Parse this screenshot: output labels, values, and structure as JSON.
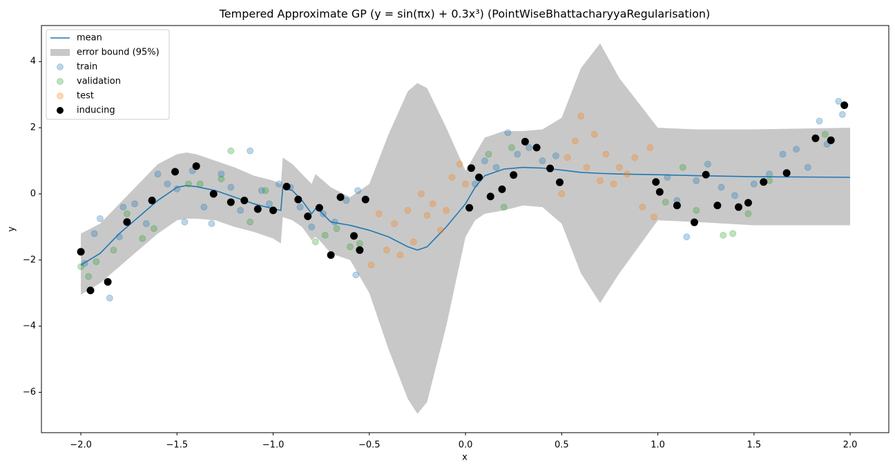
{
  "chart_data": {
    "type": "composite",
    "title": "Tempered Approximate GP (y = sin(πx) + 0.3x³) (PointWiseBhattacharyyaRegularisation)",
    "x_label": "x",
    "y_label": "y",
    "xlim": [
      -2.205,
      2.201
    ],
    "ylim": [
      -7.22,
      5.09
    ],
    "xticks": [
      {
        "value": -2.0,
        "label": "−2.0"
      },
      {
        "value": -1.5,
        "label": "−1.5"
      },
      {
        "value": -1.0,
        "label": "−1.0"
      },
      {
        "value": -0.5,
        "label": "−0.5"
      },
      {
        "value": 0,
        "label": "0.0"
      },
      {
        "value": 0.5,
        "label": "0.5"
      },
      {
        "value": 1.0,
        "label": "1.0"
      },
      {
        "value": 1.5,
        "label": "1.5"
      },
      {
        "value": 2.0,
        "label": "2.0"
      }
    ],
    "yticks": [
      {
        "value": -6,
        "label": "−6"
      },
      {
        "value": -4,
        "label": "−4"
      },
      {
        "value": -2,
        "label": "−2"
      },
      0,
      2,
      4
    ],
    "grid": false,
    "legend": "upper left",
    "series": [
      {
        "name": "mean",
        "type": "line",
        "color": "#1f77b4",
        "x": [
          -2.0,
          -1.9,
          -1.8,
          -1.7,
          -1.6,
          -1.5,
          -1.45,
          -1.4,
          -1.3,
          -1.2,
          -1.1,
          -1.0,
          -0.96,
          -0.95,
          -0.9,
          -0.85,
          -0.8,
          -0.78,
          -0.76,
          -0.7,
          -0.6,
          -0.5,
          -0.4,
          -0.3,
          -0.25,
          -0.2,
          -0.1,
          0.0,
          0.05,
          0.1,
          0.2,
          0.3,
          0.4,
          0.5,
          0.6,
          0.7,
          0.8,
          1.0,
          1.2,
          1.5,
          2.0
        ],
        "values": [
          -2.15,
          -1.8,
          -1.2,
          -0.7,
          -0.2,
          0.2,
          0.25,
          0.22,
          0.1,
          -0.1,
          -0.3,
          -0.45,
          -0.5,
          0.2,
          0.1,
          -0.2,
          -0.6,
          -0.45,
          -0.5,
          -0.85,
          -0.95,
          -1.1,
          -1.3,
          -1.6,
          -1.7,
          -1.6,
          -1.0,
          -0.3,
          0.2,
          0.55,
          0.75,
          0.8,
          0.78,
          0.72,
          0.65,
          0.62,
          0.6,
          0.58,
          0.55,
          0.52,
          0.5
        ]
      },
      {
        "name": "error bound (95%)",
        "type": "band",
        "color": "#c8c8c8",
        "x": [
          -2.0,
          -1.9,
          -1.8,
          -1.7,
          -1.6,
          -1.5,
          -1.45,
          -1.4,
          -1.3,
          -1.2,
          -1.1,
          -1.0,
          -0.96,
          -0.95,
          -0.9,
          -0.85,
          -0.8,
          -0.78,
          -0.76,
          -0.7,
          -0.6,
          -0.5,
          -0.4,
          -0.3,
          -0.25,
          -0.2,
          -0.1,
          0.0,
          0.05,
          0.1,
          0.2,
          0.3,
          0.4,
          0.5,
          0.6,
          0.7,
          0.8,
          1.0,
          1.2,
          1.5,
          2.0
        ],
        "upper": [
          -1.2,
          -0.9,
          -0.3,
          0.3,
          0.9,
          1.2,
          1.25,
          1.2,
          1.0,
          0.8,
          0.55,
          0.4,
          0.3,
          1.1,
          0.9,
          0.6,
          0.3,
          0.6,
          0.5,
          0.2,
          -0.1,
          0.3,
          1.8,
          3.1,
          3.35,
          3.2,
          2.0,
          0.7,
          1.2,
          1.7,
          1.9,
          1.9,
          1.95,
          2.3,
          3.8,
          4.55,
          3.5,
          2.0,
          1.95,
          1.95,
          2.0
        ],
        "lower": [
          -3.05,
          -2.7,
          -2.2,
          -1.7,
          -1.2,
          -0.8,
          -0.75,
          -0.75,
          -0.8,
          -1.0,
          -1.15,
          -1.35,
          -1.5,
          -0.7,
          -0.8,
          -1.0,
          -1.4,
          -1.3,
          -1.4,
          -1.8,
          -2.0,
          -3.0,
          -4.7,
          -6.2,
          -6.65,
          -6.3,
          -4.0,
          -1.3,
          -0.8,
          -0.6,
          -0.5,
          -0.35,
          -0.4,
          -0.9,
          -2.4,
          -3.3,
          -2.4,
          -0.8,
          -0.85,
          -0.95,
          -0.95
        ]
      },
      {
        "name": "train",
        "type": "scatter",
        "color": "#1f77b4",
        "alpha": 0.3,
        "x": [
          -1.98,
          -1.93,
          -1.9,
          -1.85,
          -1.8,
          -1.78,
          -1.72,
          -1.66,
          -1.6,
          -1.55,
          -1.5,
          -1.46,
          -1.42,
          -1.36,
          -1.32,
          -1.27,
          -1.22,
          -1.17,
          -1.12,
          -1.06,
          -1.02,
          -0.97,
          -0.91,
          -0.86,
          -0.8,
          -0.74,
          -0.68,
          -0.62,
          -0.57,
          -0.56,
          0.05,
          0.1,
          0.16,
          0.22,
          0.27,
          0.33,
          0.4,
          0.47,
          1.05,
          1.1,
          1.15,
          1.2,
          1.26,
          1.33,
          1.4,
          1.5,
          1.58,
          1.65,
          1.72,
          1.78,
          1.84,
          1.88,
          1.94,
          1.96
        ],
        "values": [
          -2.1,
          -1.2,
          -0.75,
          -3.15,
          -1.3,
          -0.4,
          -0.3,
          -0.9,
          0.6,
          0.3,
          0.15,
          -0.85,
          0.7,
          -0.4,
          -0.9,
          0.6,
          0.2,
          -0.5,
          1.3,
          0.1,
          -0.3,
          0.3,
          0.2,
          -0.4,
          -1.0,
          -0.6,
          -0.85,
          -0.2,
          -2.45,
          0.1,
          0.3,
          1.0,
          0.8,
          1.85,
          1.2,
          1.4,
          1.0,
          1.15,
          0.5,
          -0.2,
          -1.3,
          0.4,
          0.9,
          0.2,
          -0.05,
          0.3,
          0.6,
          1.2,
          1.35,
          0.8,
          2.2,
          1.5,
          2.8,
          2.4
        ]
      },
      {
        "name": "validation",
        "type": "scatter",
        "color": "#2ca02c",
        "alpha": 0.3,
        "x": [
          -2.0,
          -1.96,
          -1.92,
          -1.83,
          -1.76,
          -1.68,
          -1.62,
          -1.44,
          -1.38,
          -1.27,
          -1.22,
          -1.12,
          -1.04,
          -0.78,
          -0.73,
          -0.67,
          -0.6,
          -0.55,
          0.12,
          0.2,
          0.24,
          1.04,
          1.13,
          1.2,
          1.34,
          1.39,
          1.47,
          1.58,
          1.87
        ],
        "values": [
          -2.2,
          -2.5,
          -2.05,
          -1.7,
          -0.6,
          -1.35,
          -1.05,
          0.3,
          0.3,
          0.45,
          1.3,
          -0.85,
          0.1,
          -1.45,
          -1.25,
          -1.05,
          -1.6,
          -1.5,
          1.2,
          -0.4,
          1.4,
          -0.25,
          0.8,
          -0.5,
          -1.25,
          -1.2,
          -0.6,
          0.4,
          1.8
        ]
      },
      {
        "name": "test",
        "type": "scatter",
        "color": "#ff7f0e",
        "alpha": 0.3,
        "x": [
          -0.49,
          -0.45,
          -0.41,
          -0.37,
          -0.34,
          -0.3,
          -0.27,
          -0.23,
          -0.2,
          -0.17,
          -0.13,
          -0.1,
          -0.07,
          -0.03,
          0.0,
          0.5,
          0.53,
          0.57,
          0.6,
          0.63,
          0.67,
          0.7,
          0.73,
          0.77,
          0.8,
          0.84,
          0.88,
          0.92,
          0.96,
          0.98
        ],
        "values": [
          -2.15,
          -0.6,
          -1.7,
          -0.9,
          -1.85,
          -0.5,
          -1.45,
          0.0,
          -0.65,
          -0.3,
          -1.1,
          -0.5,
          0.5,
          0.9,
          0.3,
          0.0,
          1.1,
          1.6,
          2.35,
          0.8,
          1.8,
          0.4,
          1.2,
          0.3,
          0.8,
          0.6,
          1.1,
          -0.4,
          1.4,
          -0.7
        ]
      },
      {
        "name": "inducing",
        "type": "scatter",
        "color": "#000000",
        "alpha": 1,
        "x": [
          -2.0,
          -1.95,
          -1.86,
          -1.76,
          -1.63,
          -1.51,
          -1.4,
          -1.31,
          -1.22,
          -1.15,
          -1.08,
          -1.0,
          -0.93,
          -0.87,
          -0.82,
          -0.76,
          -0.7,
          -0.65,
          -0.58,
          -0.55,
          -0.52,
          0.02,
          0.03,
          0.07,
          0.13,
          0.19,
          0.25,
          0.31,
          0.37,
          0.44,
          0.49,
          0.99,
          1.01,
          1.1,
          1.19,
          1.25,
          1.31,
          1.42,
          1.47,
          1.55,
          1.67,
          1.82,
          1.9,
          1.97
        ],
        "values": [
          -1.75,
          -2.92,
          -2.66,
          -0.85,
          -0.2,
          0.67,
          0.84,
          0.0,
          -0.25,
          -0.2,
          -0.46,
          -0.5,
          0.22,
          -0.17,
          -0.68,
          -0.42,
          -1.85,
          -0.1,
          -1.27,
          -1.7,
          -0.17,
          -0.42,
          0.78,
          0.5,
          -0.08,
          0.14,
          0.57,
          1.58,
          1.4,
          0.77,
          0.35,
          0.36,
          0.06,
          -0.35,
          -0.86,
          0.58,
          -0.35,
          -0.4,
          -0.27,
          0.36,
          0.63,
          1.68,
          1.62,
          2.68
        ]
      }
    ]
  }
}
